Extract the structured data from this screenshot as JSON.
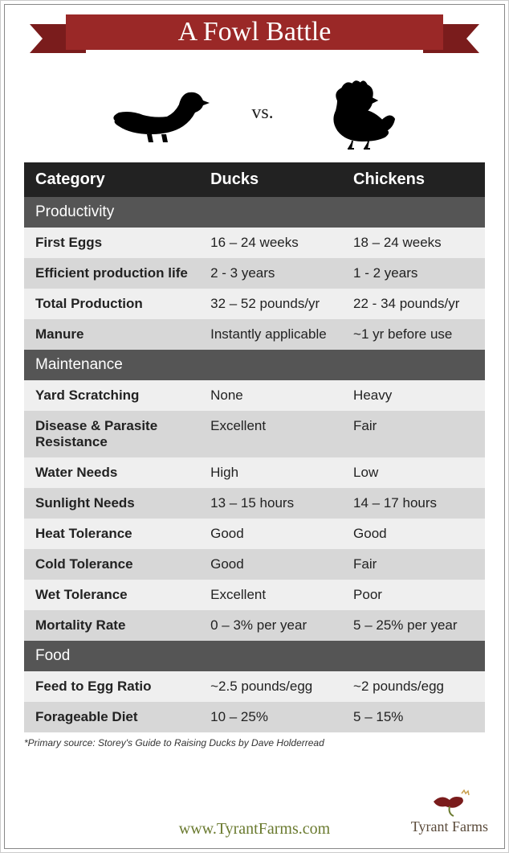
{
  "title": "A Fowl Battle",
  "vs": "vs.",
  "headers": {
    "category": "Category",
    "ducks": "Ducks",
    "chickens": "Chickens"
  },
  "sections": [
    {
      "name": "Productivity",
      "rows": [
        {
          "label": "First Eggs",
          "ducks": "16 – 24 weeks",
          "chickens": "18 – 24 weeks"
        },
        {
          "label": "Efficient production life",
          "ducks": "2 - 3 years",
          "chickens": "1 - 2 years"
        },
        {
          "label": "Total Production",
          "ducks": "32 – 52 pounds/yr",
          "chickens": "22 - 34 pounds/yr"
        },
        {
          "label": "Manure",
          "ducks": "Instantly applicable",
          "chickens": "~1 yr before use"
        }
      ]
    },
    {
      "name": "Maintenance",
      "rows": [
        {
          "label": "Yard Scratching",
          "ducks": "None",
          "chickens": "Heavy"
        },
        {
          "label": "Disease & Parasite Resistance",
          "ducks": "Excellent",
          "chickens": "Fair"
        },
        {
          "label": "Water Needs",
          "ducks": "High",
          "chickens": "Low"
        },
        {
          "label": "Sunlight Needs",
          "ducks": "13 – 15 hours",
          "chickens": "14 – 17 hours"
        },
        {
          "label": "Heat Tolerance",
          "ducks": "Good",
          "chickens": "Good"
        },
        {
          "label": "Cold Tolerance",
          "ducks": "Good",
          "chickens": "Fair"
        },
        {
          "label": "Wet Tolerance",
          "ducks": "Excellent",
          "chickens": "Poor"
        },
        {
          "label": "Mortality Rate",
          "ducks": "0 – 3% per year",
          "chickens": "5 – 25% per year"
        }
      ]
    },
    {
      "name": "Food",
      "rows": [
        {
          "label": "Feed to Egg Ratio",
          "ducks": "~2.5 pounds/egg",
          "chickens": "~2 pounds/egg"
        },
        {
          "label": "Forageable Diet",
          "ducks": "10 – 25%",
          "chickens": "5 – 15%"
        }
      ]
    }
  ],
  "source": "*Primary source: Storey's Guide to Raising Ducks by Dave Holderread",
  "url": "www.TyrantFarms.com",
  "logo_text": "Tyrant Farms",
  "colors": {
    "ribbon_main": "#9a2827",
    "ribbon_tail": "#7a1c1c",
    "header_bg": "#222222",
    "section_bg": "#555555",
    "row_light": "#efefef",
    "row_dark": "#d7d7d7",
    "url_color": "#6a7a2f"
  }
}
